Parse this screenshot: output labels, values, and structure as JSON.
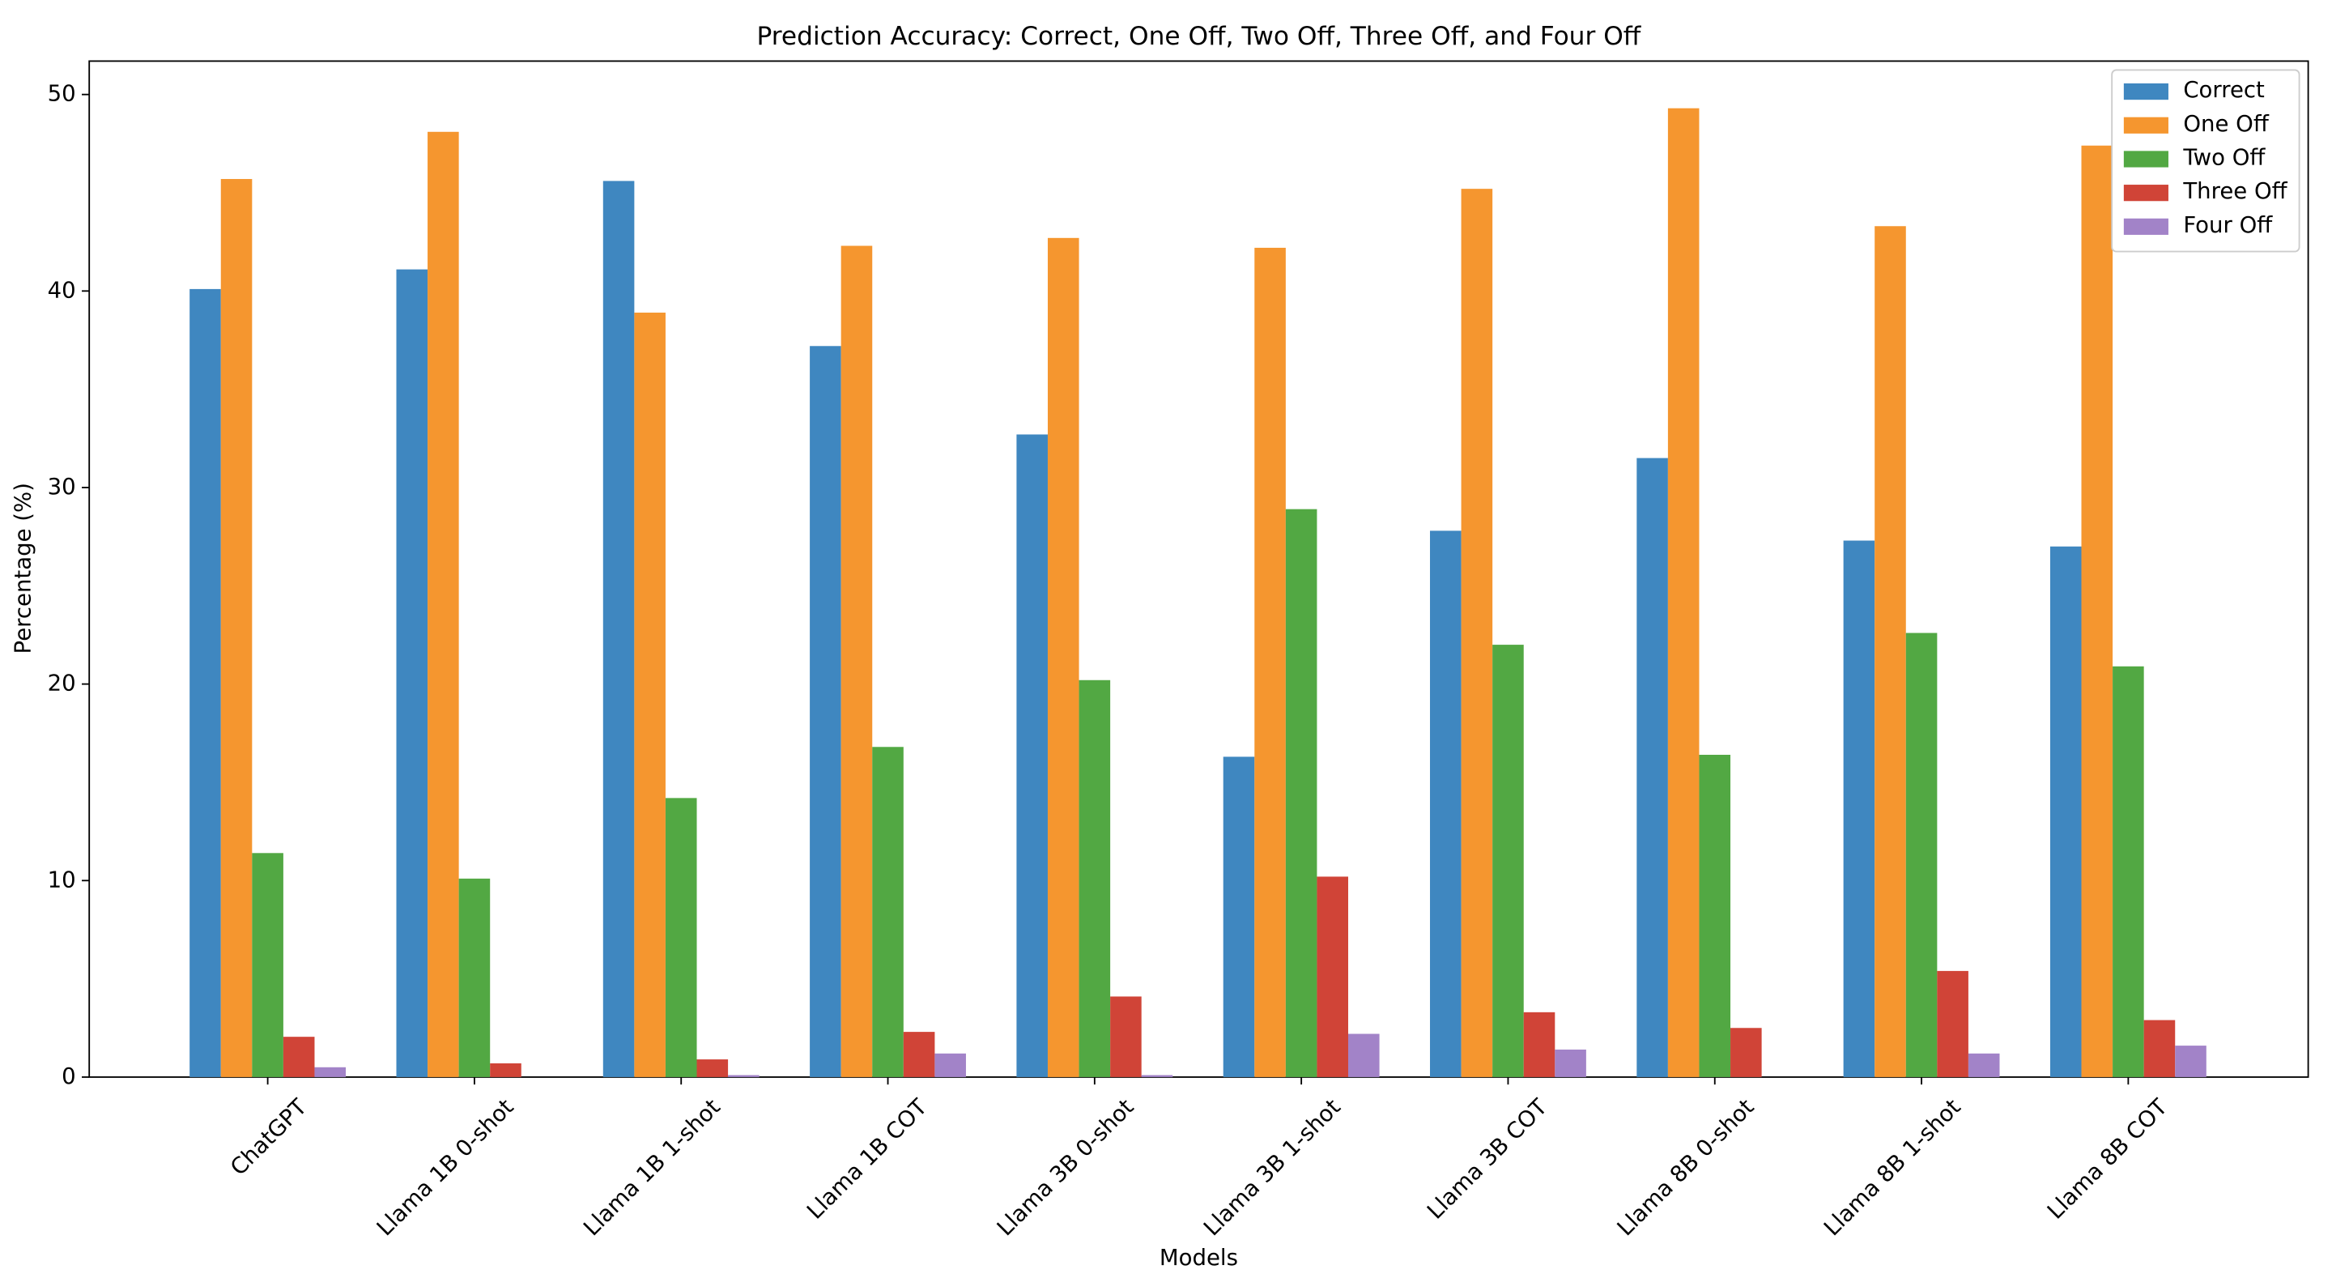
{
  "chart_data": {
    "type": "bar",
    "title": "Prediction Accuracy: Correct, One Off, Two Off, Three Off, and Four Off",
    "x_label": "Models",
    "y_label": "Percentage (%)",
    "categories": [
      "ChatGPT",
      "Llama 1B 0-shot",
      "Llama 1B 1-shot",
      "Llama 1B COT",
      "Llama 3B 0-shot",
      "Llama 3B 1-shot",
      "Llama 3B COT",
      "Llama 8B 0-shot",
      "Llama 8B 1-shot",
      "Llama 8B COT"
    ],
    "series": [
      {
        "name": "Correct",
        "color": "#3f87c0",
        "values": [
          40.1,
          41.1,
          45.6,
          37.2,
          32.7,
          16.3,
          27.8,
          31.5,
          27.3,
          27.0
        ]
      },
      {
        "name": "One Off",
        "color": "#f5962f",
        "values": [
          45.7,
          48.1,
          38.9,
          42.3,
          42.7,
          42.2,
          45.2,
          49.3,
          43.3,
          47.4
        ]
      },
      {
        "name": "Two Off",
        "color": "#52a843",
        "values": [
          11.4,
          10.1,
          14.2,
          16.8,
          20.2,
          28.9,
          22.0,
          16.4,
          22.6,
          20.9
        ]
      },
      {
        "name": "Three Off",
        "color": "#d04437",
        "values": [
          2.05,
          0.7,
          0.9,
          2.3,
          4.1,
          10.2,
          3.3,
          2.5,
          5.4,
          2.9
        ]
      },
      {
        "name": "Four Off",
        "color": "#a283c8",
        "values": [
          0.5,
          0,
          0.1,
          1.2,
          0.1,
          2.2,
          1.4,
          0,
          1.2,
          1.6
        ]
      }
    ],
    "ylim": [
      0,
      51.7
    ],
    "yticks": [
      0,
      10,
      20,
      30,
      40,
      50
    ],
    "grid": false,
    "legend": "upper right"
  }
}
